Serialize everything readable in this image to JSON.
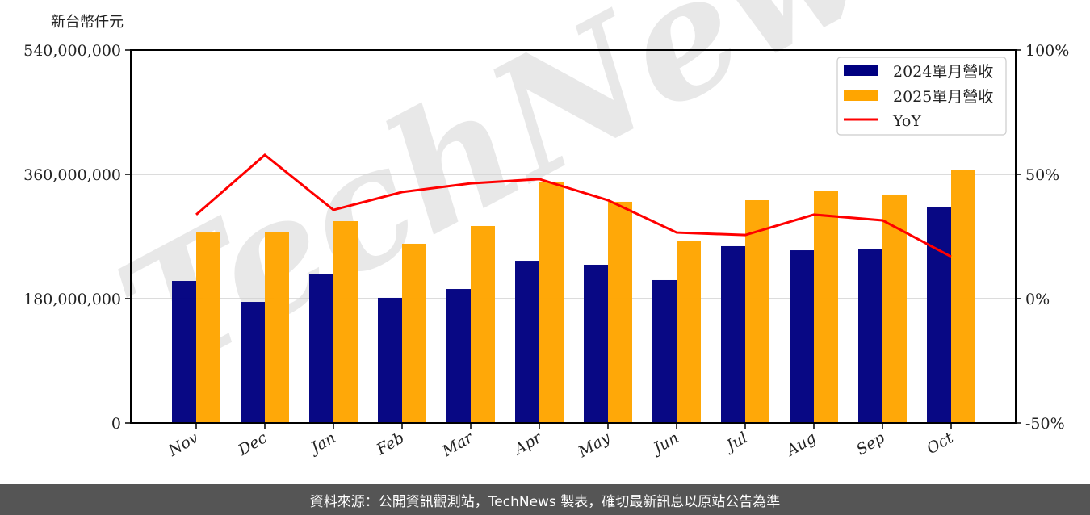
{
  "chart_data": {
    "type": "bar",
    "title": "",
    "unit_label": "新台幣仟元",
    "xlabel": "",
    "ylabel": "新台幣仟元",
    "y2label": "",
    "categories": [
      "Nov",
      "Dec",
      "Jan",
      "Feb",
      "Mar",
      "Apr",
      "May",
      "Jun",
      "Jul",
      "Aug",
      "Sep",
      "Oct"
    ],
    "series": [
      {
        "name": "2024單月營收",
        "type": "bar",
        "color": "#000080",
        "axis": "left",
        "values": [
          205700000,
          175300000,
          215100000,
          181200000,
          194000000,
          234900000,
          229100000,
          206900000,
          256000000,
          250100000,
          251300000,
          313200000
        ]
      },
      {
        "name": "2025單月營收",
        "type": "bar",
        "color": "#FFA500",
        "axis": "left",
        "values": [
          275800000,
          277000000,
          292200000,
          259500000,
          285200000,
          349500000,
          320300000,
          263000000,
          322600000,
          335500000,
          330800000,
          367000000
        ]
      },
      {
        "name": "YoY",
        "type": "line",
        "color": "#FF0000",
        "axis": "right",
        "unit": "%",
        "values": [
          33.8,
          57.8,
          35.7,
          42.9,
          46.4,
          48.1,
          39.6,
          26.6,
          25.6,
          33.8,
          31.5,
          16.9
        ]
      }
    ],
    "ylim": [
      0,
      540000000
    ],
    "y2lim": [
      -50,
      100
    ],
    "y_ticks": [
      "0",
      "180,000,000",
      "360,000,000",
      "540,000,000"
    ],
    "y2_ticks": [
      "-50%",
      "0%",
      "50%",
      "100%"
    ],
    "grid": "horizontal",
    "legend_position": "upper right",
    "watermark": "TechNews"
  },
  "axis": {
    "left_title": "新台幣仟元",
    "left_ticks": [
      {
        "label": "540,000,000",
        "value": 540000000
      },
      {
        "label": "360,000,000",
        "value": 360000000
      },
      {
        "label": "180,000,000",
        "value": 180000000
      },
      {
        "label": "0",
        "value": 0
      }
    ],
    "right_ticks": [
      {
        "label": "100%",
        "value": 100
      },
      {
        "label": "50%",
        "value": 50
      },
      {
        "label": "0%",
        "value": 0
      },
      {
        "label": "-50%",
        "value": -50
      }
    ]
  },
  "legend": {
    "items": [
      {
        "label": "2024單月營收",
        "color": "#000080",
        "kind": "patch"
      },
      {
        "label": "2025單月營收",
        "color": "#FFA500",
        "kind": "patch"
      },
      {
        "label": "YoY",
        "color": "#FF0000",
        "kind": "line"
      }
    ]
  },
  "watermark": {
    "text": "TechNews"
  },
  "footer": {
    "text": "資料來源：公開資訊觀測站，TechNews 製表，確切最新訊息以原站公告為準"
  }
}
